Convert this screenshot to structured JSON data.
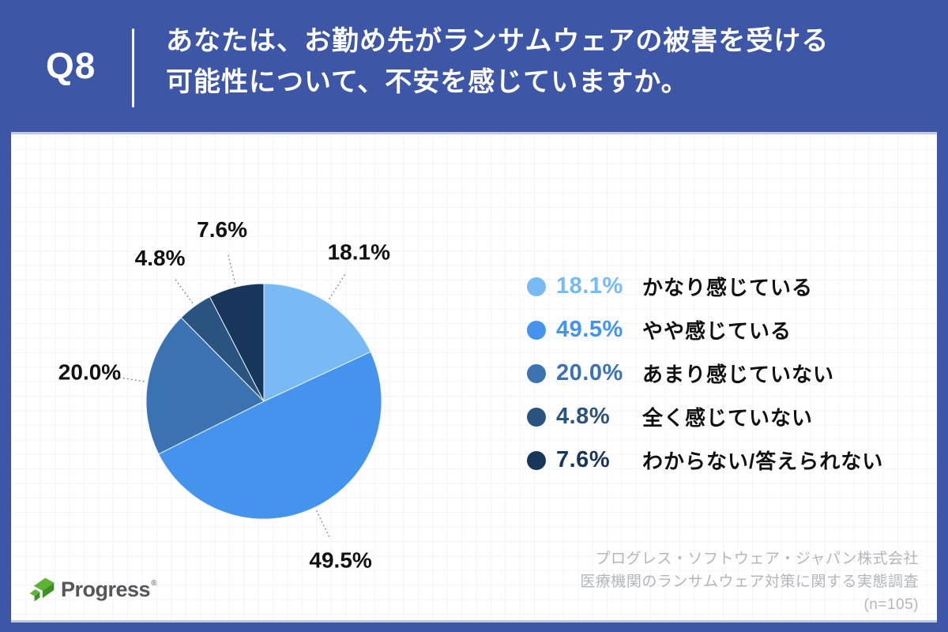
{
  "header": {
    "question_number": "Q8",
    "question_line1": "あなたは、お勤め先がランサムウェアの被害を受ける",
    "question_line2": "可能性について、不安を感じていますか。"
  },
  "chart_data": {
    "type": "pie",
    "title": "Q8 あなたは、お勤め先がランサムウェアの被害を受ける可能性について、不安を感じていますか。",
    "unit": "%",
    "start_angle": "top",
    "direction": "clockwise",
    "categories": [
      "かなり感じている",
      "やや感じている",
      "あまり感じていない",
      "全く感じていない",
      "わからない/答えられない"
    ],
    "values": [
      18.1,
      49.5,
      20.0,
      4.8,
      7.6
    ],
    "labels": [
      "18.1%",
      "49.5%",
      "20.0%",
      "4.8%",
      "7.6%"
    ],
    "colors": [
      "#77BAF4",
      "#4493EC",
      "#3B72B1",
      "#2A5380",
      "#18365C"
    ],
    "sample_size": "(n=105)",
    "legend_position": "right"
  },
  "footer": {
    "logo_text": "Progress",
    "logo_mark": "®",
    "attribution_line1": "プログレス・ソフトウェア・ジャパン株式会社",
    "attribution_line2": "医療機関のランサムウェア対策に関する実態調査",
    "attribution_line3": "(n=105)"
  },
  "colors": {
    "header_bg": "#3D56A5",
    "panel_bg": "#FFFFFF",
    "pie_label_text": "#111111",
    "leader_line": "#8A8A8A",
    "attribution_text": "#B3B6BA",
    "logo_green": "#5CB335",
    "logo_green_dark": "#3E8F25",
    "logo_text_color": "#55565A"
  }
}
